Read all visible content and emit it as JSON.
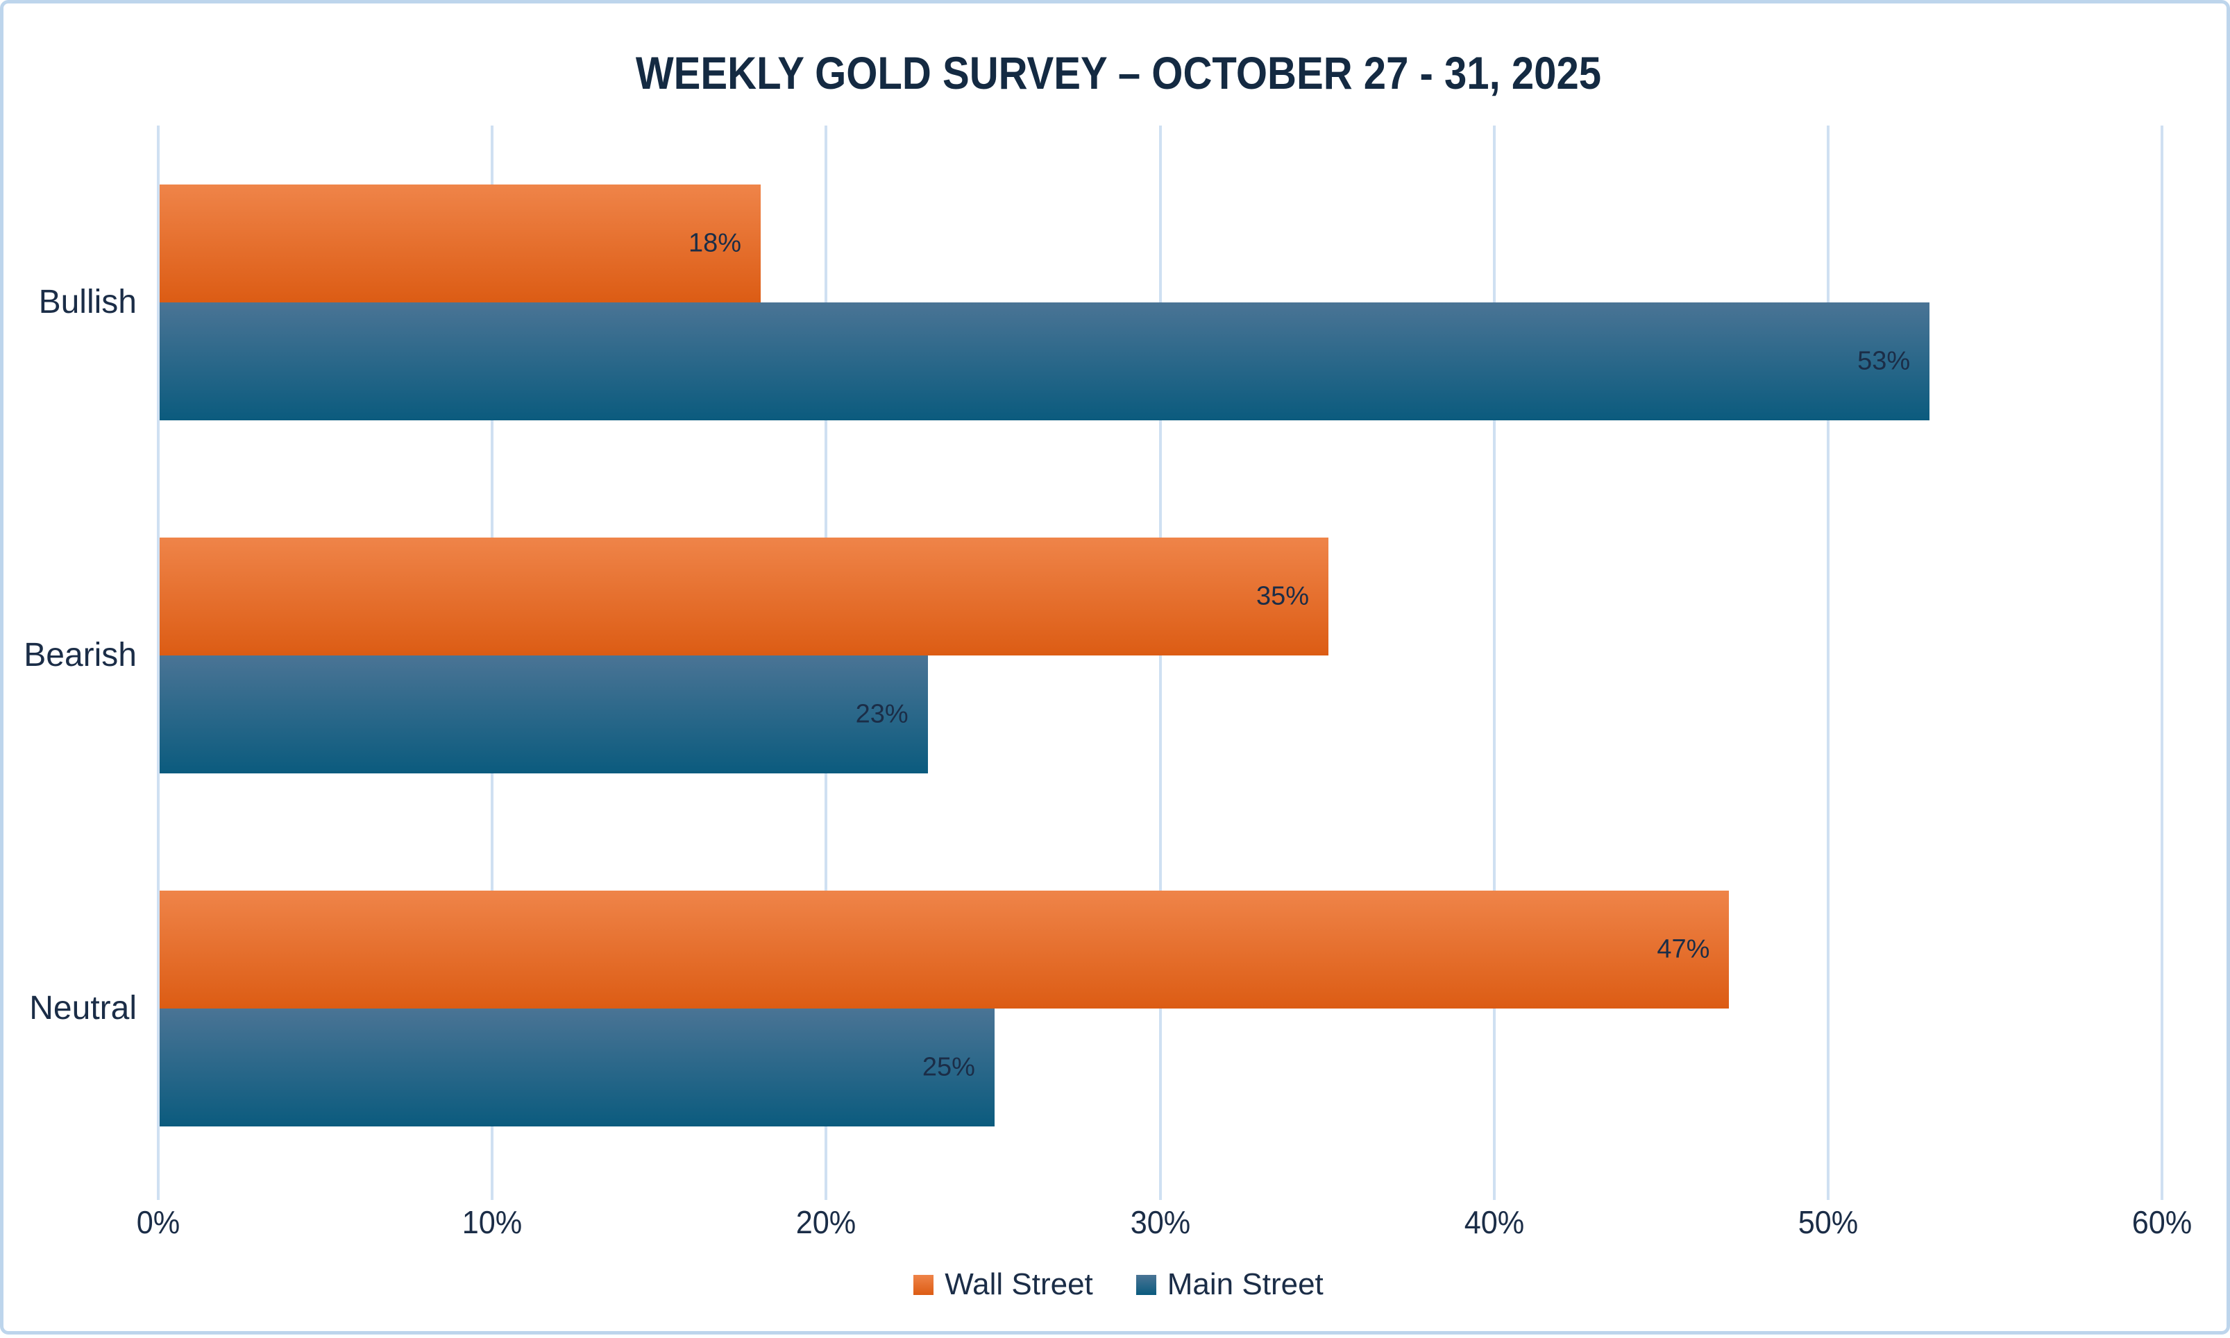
{
  "chart_data": {
    "type": "bar",
    "orientation": "horizontal",
    "title": "WEEKLY GOLD SURVEY – OCTOBER 27 - 31, 2025",
    "categories": [
      "Bullish",
      "Bearish",
      "Neutral"
    ],
    "series": [
      {
        "name": "Wall Street",
        "values": [
          18,
          35,
          47
        ],
        "labels": [
          "18%",
          "35%",
          "47%"
        ],
        "color_top": "#EF8449",
        "color_bottom": "#DC5C14"
      },
      {
        "name": "Main Street",
        "values": [
          53,
          23,
          25
        ],
        "labels": [
          "53%",
          "23%",
          "25%"
        ],
        "color_top": "#4A7495",
        "color_bottom": "#0B5B7E"
      }
    ],
    "x_ticks": [
      "0%",
      "10%",
      "20%",
      "30%",
      "40%",
      "50%",
      "60%"
    ],
    "xlim": [
      0,
      60
    ],
    "grid": "vertical",
    "legend_position": "bottom",
    "colors": {
      "gridline": "#CFE0F2",
      "frame_border": "#BDD5EC",
      "text": "#1B2D47",
      "title_text": "#142A42",
      "background": "#FFFFFF"
    }
  }
}
